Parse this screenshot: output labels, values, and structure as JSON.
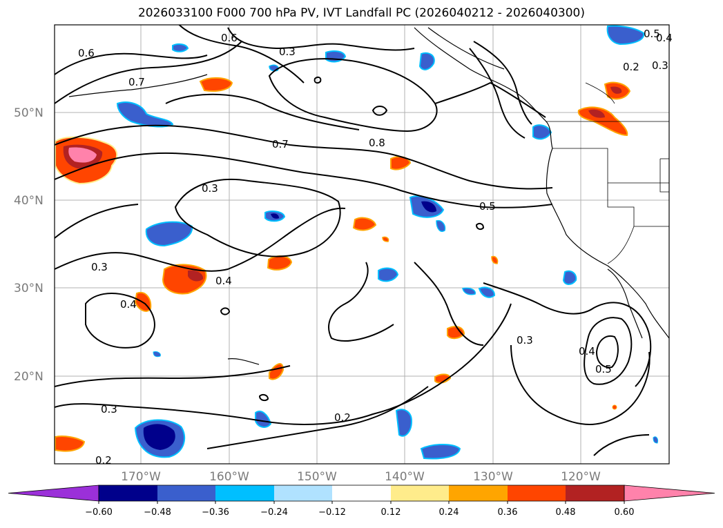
{
  "title": "2026033100 F000 700 hPa PV, IVT Landfall PC (2026040212 - 2026040300)",
  "lat_labels": [
    "50°N",
    "40°N",
    "30°N",
    "20°N"
  ],
  "lon_labels": [
    "170°W",
    "160°W",
    "150°W",
    "140°W",
    "130°W",
    "120°W"
  ],
  "contour_labels": [
    "0.6",
    "0.7",
    "0.6",
    "0.5",
    "0.4",
    "0.3",
    "0.2",
    "0.3",
    "0.7",
    "0.8",
    "0.3",
    "0.5",
    "0.3",
    "0.4",
    "0.4",
    "0.3",
    "0.4",
    "0.5",
    "0.3",
    "0.2",
    "0.2"
  ],
  "colorbar": {
    "ticks": [
      "−0.60",
      "−0.48",
      "−0.36",
      "−0.24",
      "−0.12",
      "0.12",
      "0.24",
      "0.36",
      "0.48",
      "0.60"
    ],
    "colors": [
      "#9b30d9",
      "#00008b",
      "#3a5fcd",
      "#00bfff",
      "#b0e2ff",
      "#ffffff",
      "#ffec8b",
      "#ffa500",
      "#ff4500",
      "#b22222",
      "#ff82ab",
      "#ff82ab"
    ]
  }
}
